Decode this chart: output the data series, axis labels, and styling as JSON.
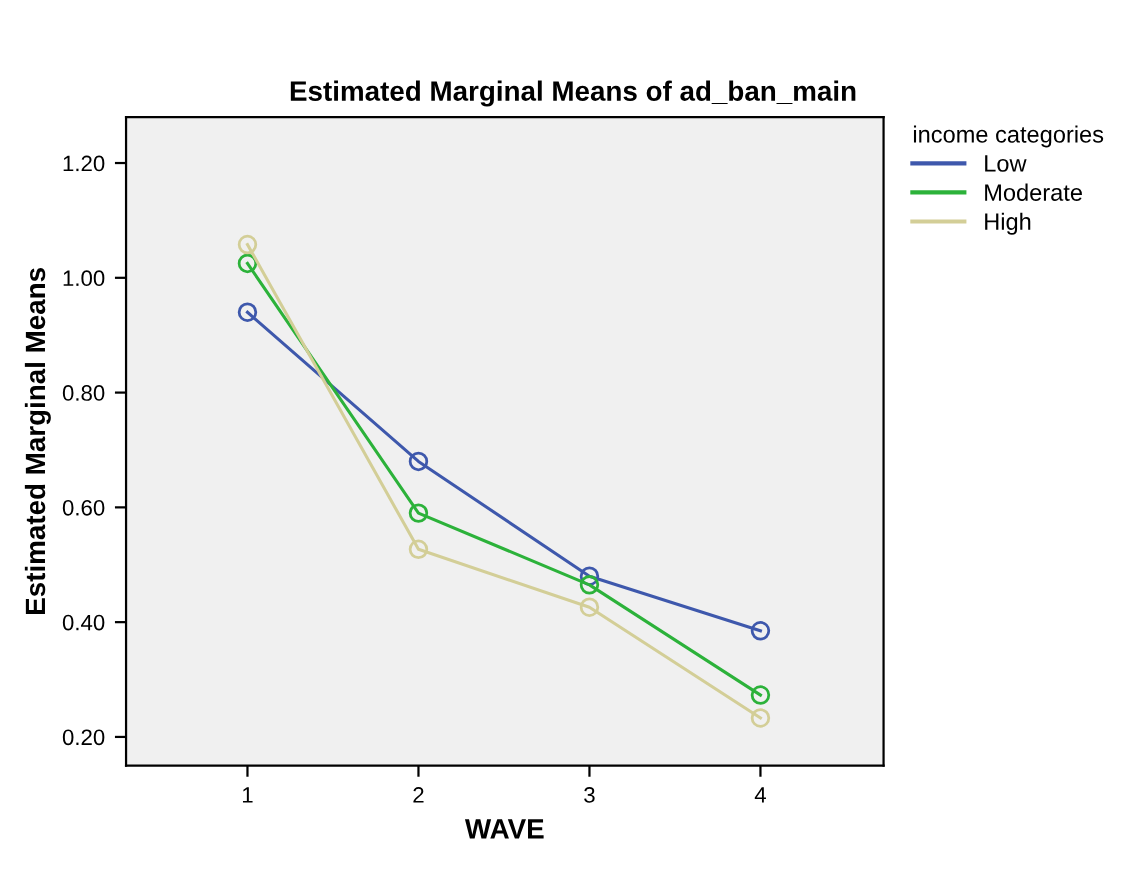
{
  "chart_data": {
    "type": "line",
    "title": "Estimated Marginal Means of ad_ban_main",
    "xlabel": "WAVE",
    "ylabel": "Estimated Marginal Means",
    "legend_title": "income categories",
    "categories": [
      "1",
      "2",
      "3",
      "4"
    ],
    "series": [
      {
        "name": "Low",
        "color": "#3e58ac",
        "values": [
          0.94,
          0.68,
          0.48,
          0.385
        ]
      },
      {
        "name": "Moderate",
        "color": "#2cb23a",
        "values": [
          1.025,
          0.59,
          0.465,
          0.273
        ]
      },
      {
        "name": "High",
        "color": "#d3ce97",
        "values": [
          1.058,
          0.527,
          0.426,
          0.233
        ]
      }
    ],
    "ylim": [
      0.15,
      1.28
    ],
    "yticks": [
      {
        "value": 0.2,
        "label": "0.20"
      },
      {
        "value": 0.4,
        "label": "0.40"
      },
      {
        "value": 0.6,
        "label": "0.60"
      },
      {
        "value": 0.8,
        "label": "0.80"
      },
      {
        "value": 1.0,
        "label": "1.00"
      },
      {
        "value": 1.2,
        "label": "1.20"
      }
    ],
    "marker": "circle",
    "line_style": "solid",
    "grid": false,
    "legend": "top right"
  }
}
